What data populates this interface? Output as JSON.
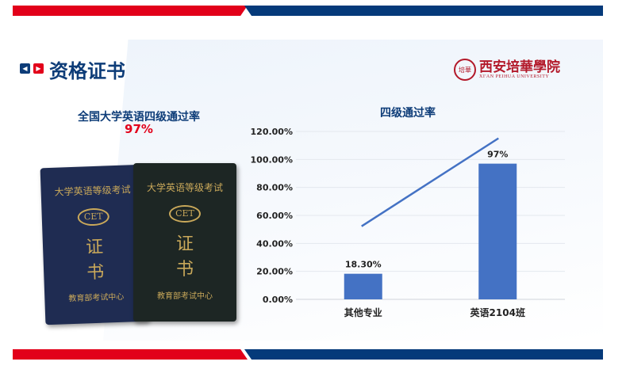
{
  "header": {
    "title": "资格证书",
    "logo_name": "西安培華學院",
    "logo_en": "XI'AN PEIHUA UNIVERSITY",
    "seal_text": "培華"
  },
  "left": {
    "title": "全国大学英语四级通过率",
    "rate": "97%"
  },
  "certificate": {
    "title": "大学英语等级考试",
    "badge": "CET",
    "line1": "证",
    "line2": "书",
    "issuer": "教育部考试中心"
  },
  "colors": {
    "red": "#e2001a",
    "navy": "#053a7a",
    "bar": "#4472c4"
  },
  "chart_data": {
    "type": "bar",
    "title": "四级通过率",
    "categories": [
      "其他专业",
      "英语2104班"
    ],
    "values": [
      18.3,
      97
    ],
    "data_labels": [
      "18.30%",
      "97%"
    ],
    "ylim": [
      0,
      120
    ],
    "yticks": [
      "0.00%",
      "20.00%",
      "40.00%",
      "60.00%",
      "80.00%",
      "100.00%",
      "120.00%"
    ],
    "grid": true,
    "trend_line": true
  }
}
